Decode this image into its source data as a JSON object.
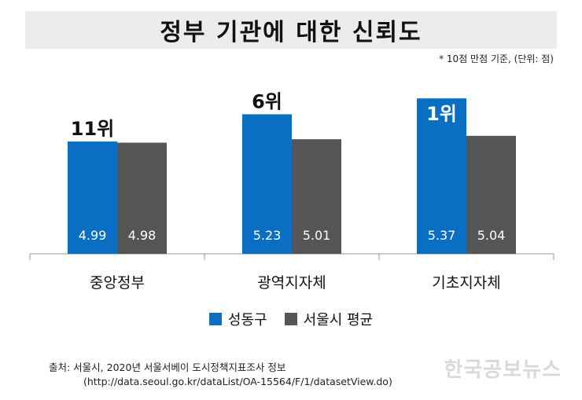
{
  "header": {
    "title": "정부 기관에 대한 신뢰도",
    "unit_note": "* 10점 만점 기준, (단위: 점)"
  },
  "chart_data": {
    "type": "bar",
    "title": "정부 기관에 대한 신뢰도",
    "categories": [
      "중앙정부",
      "광역지자체",
      "기초지자체"
    ],
    "series": [
      {
        "name": "성동구",
        "values": [
          4.99,
          5.23,
          5.37
        ],
        "color": "#0a6fc2"
      },
      {
        "name": "서울시 평균",
        "values": [
          4.98,
          5.01,
          5.04
        ],
        "color": "#555555"
      }
    ],
    "rank_labels": [
      "11위",
      "6위",
      "1위"
    ],
    "ylim": [
      4.0,
      5.6
    ],
    "grid": false,
    "legend": "bottom-center",
    "xlabel": "",
    "ylabel": ""
  },
  "legend": {
    "items": [
      {
        "label": "성동구",
        "color": "#0a6fc2"
      },
      {
        "label": "서울시 평균",
        "color": "#555555"
      }
    ]
  },
  "footer": {
    "source_line1": "출처: 서울시, 2020년 서울서베이 도시정책지표조사 정보",
    "source_line2": "(http://data.seoul.go.kr/dataList/OA-15564/F/1/datasetView.do)",
    "watermark": "한국공보뉴스"
  }
}
